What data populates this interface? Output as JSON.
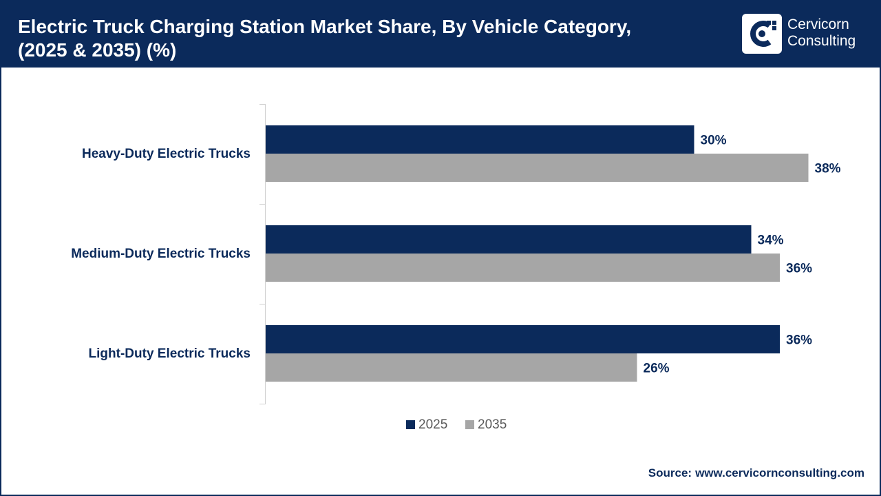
{
  "header": {
    "title_line1": "Electric Truck Charging Station Market Share, By Vehicle Category,",
    "title_line2": "(2025 & 2035) (%)"
  },
  "logo": {
    "icon": "cervicorn-c-icon",
    "line1": "Cervicorn",
    "line2": "Consulting"
  },
  "source": {
    "label": "Source:",
    "value": "www.cervicornconsulting.com"
  },
  "colors": {
    "header": "#0b2a5b",
    "series_2025": "#0b2a5b",
    "series_2035": "#a6a6a6"
  },
  "chart_data": {
    "type": "bar",
    "orientation": "horizontal",
    "categories": [
      "Heavy-Duty Electric Trucks",
      "Medium-Duty Electric Trucks",
      "Light-Duty Electric Trucks"
    ],
    "series": [
      {
        "name": "2025",
        "values": [
          30,
          34,
          36
        ]
      },
      {
        "name": "2035",
        "values": [
          38,
          36,
          26
        ]
      }
    ],
    "unit": "%",
    "legend": "bottom-center",
    "grid": false
  }
}
